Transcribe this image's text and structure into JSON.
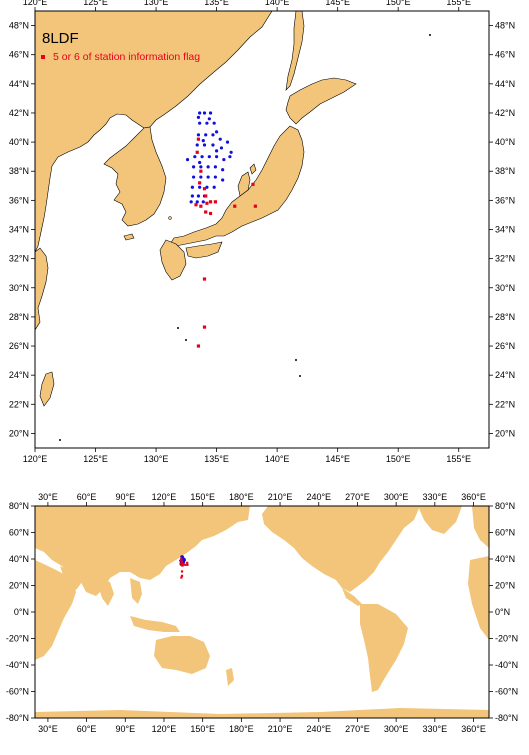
{
  "title": "8LDF",
  "legend": {
    "label": "5 or 6 of station information flag",
    "color": "#e8001c"
  },
  "colors": {
    "land": "#f2c57b",
    "ocean": "#ffffff",
    "station": "#1010e0",
    "flagged": "#e8001c"
  },
  "regional_map": {
    "lon_ticks": [
      "120°E",
      "125°E",
      "130°E",
      "135°E",
      "140°E",
      "145°E",
      "150°E",
      "155°E"
    ],
    "lon_values": [
      120,
      125,
      130,
      135,
      140,
      145,
      150,
      155
    ],
    "lat_ticks": [
      "20°N",
      "22°N",
      "24°N",
      "26°N",
      "28°N",
      "30°N",
      "32°N",
      "34°N",
      "36°N",
      "38°N",
      "40°N",
      "42°N",
      "44°N",
      "46°N",
      "48°N"
    ],
    "lat_values": [
      20,
      22,
      24,
      26,
      28,
      30,
      32,
      34,
      36,
      38,
      40,
      42,
      44,
      46,
      48
    ],
    "lon_range": [
      120,
      157.5
    ],
    "lat_range": [
      19,
      49
    ]
  },
  "global_map": {
    "lon_ticks": [
      "30°E",
      "60°E",
      "90°E",
      "120°E",
      "150°E",
      "180°E",
      "210°E",
      "240°E",
      "270°E",
      "300°E",
      "330°E",
      "360°E"
    ],
    "lon_values": [
      30,
      60,
      90,
      120,
      150,
      180,
      210,
      240,
      270,
      300,
      330,
      360
    ],
    "lat_ticks": [
      "80°N",
      "60°N",
      "40°N",
      "20°N",
      "0°N",
      "-20°N",
      "-40°N",
      "-60°N",
      "-80°N"
    ],
    "lat_values": [
      80,
      60,
      40,
      20,
      0,
      -20,
      -40,
      -60,
      -80
    ],
    "lon_range": [
      20,
      372
    ],
    "lat_range": [
      -80,
      80
    ]
  },
  "stations": {
    "normal": [
      [
        133.6,
        42.0
      ],
      [
        134.0,
        42.0
      ],
      [
        134.5,
        42.0
      ],
      [
        133.6,
        41.3
      ],
      [
        134.2,
        41.3
      ],
      [
        134.8,
        41.3
      ],
      [
        133.5,
        40.5
      ],
      [
        134.1,
        40.5
      ],
      [
        134.7,
        40.5
      ],
      [
        135.3,
        40.2
      ],
      [
        135.9,
        40.0
      ],
      [
        136.2,
        39.3
      ],
      [
        133.4,
        39.8
      ],
      [
        134.0,
        39.8
      ],
      [
        134.7,
        39.8
      ],
      [
        135.4,
        39.6
      ],
      [
        136.1,
        39.0
      ],
      [
        133.2,
        39.0
      ],
      [
        133.8,
        39.0
      ],
      [
        134.4,
        39.0
      ],
      [
        135.0,
        39.0
      ],
      [
        135.6,
        38.8
      ],
      [
        132.6,
        38.8
      ],
      [
        133.1,
        38.3
      ],
      [
        133.7,
        38.3
      ],
      [
        134.3,
        38.3
      ],
      [
        134.9,
        38.3
      ],
      [
        135.5,
        38.1
      ],
      [
        133.1,
        37.6
      ],
      [
        133.7,
        37.6
      ],
      [
        134.3,
        37.6
      ],
      [
        134.9,
        37.6
      ],
      [
        135.5,
        37.4
      ],
      [
        133.0,
        36.9
      ],
      [
        133.6,
        36.9
      ],
      [
        134.2,
        36.9
      ],
      [
        134.8,
        36.9
      ],
      [
        133.0,
        36.3
      ],
      [
        133.5,
        36.3
      ],
      [
        134.0,
        36.3
      ],
      [
        132.9,
        35.9
      ],
      [
        133.4,
        35.9
      ],
      [
        133.9,
        35.9
      ],
      [
        133.5,
        41.7
      ],
      [
        134.4,
        41.6
      ],
      [
        135.0,
        40.7
      ],
      [
        133.9,
        40.1
      ],
      [
        135.0,
        39.4
      ],
      [
        133.6,
        38.6
      ]
    ],
    "flagged": [
      [
        133.5,
        40.2
      ],
      [
        133.4,
        39.3
      ],
      [
        133.7,
        38.0
      ],
      [
        133.6,
        37.2
      ],
      [
        134.0,
        36.8
      ],
      [
        134.1,
        36.3
      ],
      [
        134.2,
        35.8
      ],
      [
        134.5,
        35.9
      ],
      [
        134.9,
        35.9
      ],
      [
        133.7,
        35.6
      ],
      [
        133.3,
        35.7
      ],
      [
        136.5,
        35.6
      ],
      [
        138.2,
        35.6
      ],
      [
        138.0,
        37.1
      ],
      [
        134.5,
        35.1
      ],
      [
        134.1,
        35.2
      ],
      [
        134.0,
        30.6
      ],
      [
        134.0,
        27.3
      ],
      [
        133.5,
        26.0
      ]
    ]
  }
}
